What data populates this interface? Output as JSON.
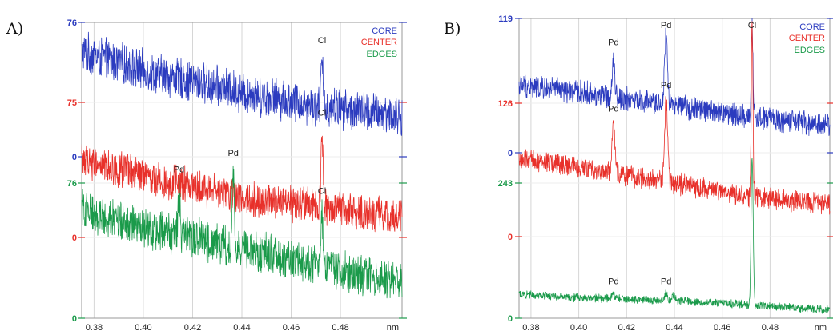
{
  "chart_data": [
    {
      "type": "line",
      "panel_label": "A)",
      "x_unit": "nm",
      "xlim": [
        0.375,
        0.505
      ],
      "x_ticks": [
        0.38,
        0.4,
        0.42,
        0.44,
        0.46,
        0.48
      ],
      "x_tick_labels": [
        "0.38",
        "0.40",
        "0.42",
        "0.44",
        "0.46",
        "0.48"
      ],
      "grid": true,
      "legend_position": "top-right",
      "y_labels": [
        {
          "text": "76",
          "color": "#2b3bbf",
          "series": "CORE",
          "ref": "top"
        },
        {
          "text": "75",
          "color": "#e8302a",
          "series": "CENTER",
          "ref": "top"
        },
        {
          "text": "0",
          "color": "#2b3bbf",
          "series": "CORE",
          "ref": "bottom"
        },
        {
          "text": "76",
          "color": "#1a9a4a",
          "series": "EDGES",
          "ref": "top"
        },
        {
          "text": "0",
          "color": "#e8302a",
          "series": "CENTER",
          "ref": "bottom"
        },
        {
          "text": "0",
          "color": "#1a9a4a",
          "series": "EDGES",
          "ref": "bottom"
        }
      ],
      "series": [
        {
          "name": "CORE",
          "color": "#2b3bbf",
          "baseline": [
            [
              0.375,
              0.78
            ],
            [
              0.4,
              0.64
            ],
            [
              0.44,
              0.48
            ],
            [
              0.47,
              0.38
            ],
            [
              0.505,
              0.3
            ]
          ],
          "noise": 0.17,
          "peaks": [
            {
              "x": 0.4725,
              "h": 0.32,
              "w": 0.0006
            }
          ]
        },
        {
          "name": "CENTER",
          "color": "#e8302a",
          "baseline": [
            [
              0.375,
              0.58
            ],
            [
              0.4,
              0.45
            ],
            [
              0.44,
              0.3
            ],
            [
              0.47,
              0.22
            ],
            [
              0.505,
              0.15
            ]
          ],
          "noise": 0.15,
          "peaks": [
            {
              "x": 0.4725,
              "h": 0.55,
              "w": 0.0006
            }
          ]
        },
        {
          "name": "EDGES",
          "color": "#1a9a4a",
          "baseline": [
            [
              0.375,
              0.8
            ],
            [
              0.4,
              0.66
            ],
            [
              0.44,
              0.52
            ],
            [
              0.47,
              0.38
            ],
            [
              0.505,
              0.27
            ]
          ],
          "noise": 0.17,
          "peaks": [
            {
              "x": 0.4145,
              "h": 0.32,
              "w": 0.0006
            },
            {
              "x": 0.4365,
              "h": 0.52,
              "w": 0.0006
            },
            {
              "x": 0.4725,
              "h": 0.4,
              "w": 0.0006
            }
          ]
        }
      ],
      "annotations": [
        {
          "text": "Cl",
          "series": "CORE",
          "x": 0.4725
        },
        {
          "text": "Cl",
          "series": "CENTER",
          "x": 0.4725
        },
        {
          "text": "Pd",
          "series": "EDGES",
          "x": 0.4145
        },
        {
          "text": "Pd",
          "series": "EDGES",
          "x": 0.4365
        },
        {
          "text": "Cl",
          "series": "EDGES",
          "x": 0.4725
        }
      ]
    },
    {
      "type": "line",
      "panel_label": "B)",
      "x_unit": "nm",
      "xlim": [
        0.375,
        0.505
      ],
      "x_ticks": [
        0.38,
        0.4,
        0.42,
        0.44,
        0.46,
        0.48
      ],
      "x_tick_labels": [
        "0.38",
        "0.40",
        "0.42",
        "0.44",
        "0.46",
        "0.48"
      ],
      "grid": true,
      "legend_position": "top-right",
      "y_labels": [
        {
          "text": "119",
          "color": "#2b3bbf",
          "series": "CORE",
          "ref": "top"
        },
        {
          "text": "126",
          "color": "#e8302a",
          "series": "CENTER",
          "ref": "top"
        },
        {
          "text": "0",
          "color": "#2b3bbf",
          "series": "CORE",
          "ref": "bottom"
        },
        {
          "text": "243",
          "color": "#1a9a4a",
          "series": "EDGES",
          "ref": "top"
        },
        {
          "text": "0",
          "color": "#e8302a",
          "series": "CENTER",
          "ref": "bottom"
        },
        {
          "text": "0",
          "color": "#1a9a4a",
          "series": "EDGES",
          "ref": "bottom"
        }
      ],
      "series": [
        {
          "name": "CORE",
          "color": "#2b3bbf",
          "baseline": [
            [
              0.375,
              0.5
            ],
            [
              0.4,
              0.45
            ],
            [
              0.44,
              0.35
            ],
            [
              0.47,
              0.27
            ],
            [
              0.505,
              0.2
            ]
          ],
          "noise": 0.1,
          "peaks": [
            {
              "x": 0.4145,
              "h": 0.28,
              "w": 0.0008
            },
            {
              "x": 0.4365,
              "h": 0.5,
              "w": 0.0009
            },
            {
              "x": 0.4725,
              "h": 0.7,
              "w": 0.0005
            }
          ]
        },
        {
          "name": "CENTER",
          "color": "#e8302a",
          "baseline": [
            [
              0.375,
              0.58
            ],
            [
              0.4,
              0.52
            ],
            [
              0.44,
              0.4
            ],
            [
              0.47,
              0.3
            ],
            [
              0.505,
              0.24
            ]
          ],
          "noise": 0.09,
          "peaks": [
            {
              "x": 0.4145,
              "h": 0.36,
              "w": 0.0008
            },
            {
              "x": 0.4365,
              "h": 0.6,
              "w": 0.0009
            },
            {
              "x": 0.4725,
              "h": 1.3,
              "w": 0.0005
            }
          ]
        },
        {
          "name": "EDGES",
          "color": "#1a9a4a",
          "baseline": [
            [
              0.375,
              0.18
            ],
            [
              0.4,
              0.15
            ],
            [
              0.44,
              0.13
            ],
            [
              0.47,
              0.1
            ],
            [
              0.505,
              0.06
            ]
          ],
          "noise": 0.035,
          "peaks": [
            {
              "x": 0.4145,
              "h": 0.04,
              "w": 0.0008
            },
            {
              "x": 0.4365,
              "h": 0.05,
              "w": 0.0008
            },
            {
              "x": 0.4395,
              "h": 0.04,
              "w": 0.0008
            },
            {
              "x": 0.4725,
              "h": 1.1,
              "w": 0.0006
            }
          ]
        }
      ],
      "annotations": [
        {
          "text": "Pd",
          "series": "CORE",
          "x": 0.4145
        },
        {
          "text": "Pd",
          "series": "CORE",
          "x": 0.4365
        },
        {
          "text": "Cl",
          "series": "CORE",
          "x": 0.4725
        },
        {
          "text": "Pd",
          "series": "CENTER",
          "x": 0.4145
        },
        {
          "text": "Pd",
          "series": "CENTER",
          "x": 0.4365
        },
        {
          "text": "Pd",
          "series": "EDGES",
          "x": 0.4145
        },
        {
          "text": "Pd",
          "series": "EDGES",
          "x": 0.4365
        }
      ]
    }
  ]
}
